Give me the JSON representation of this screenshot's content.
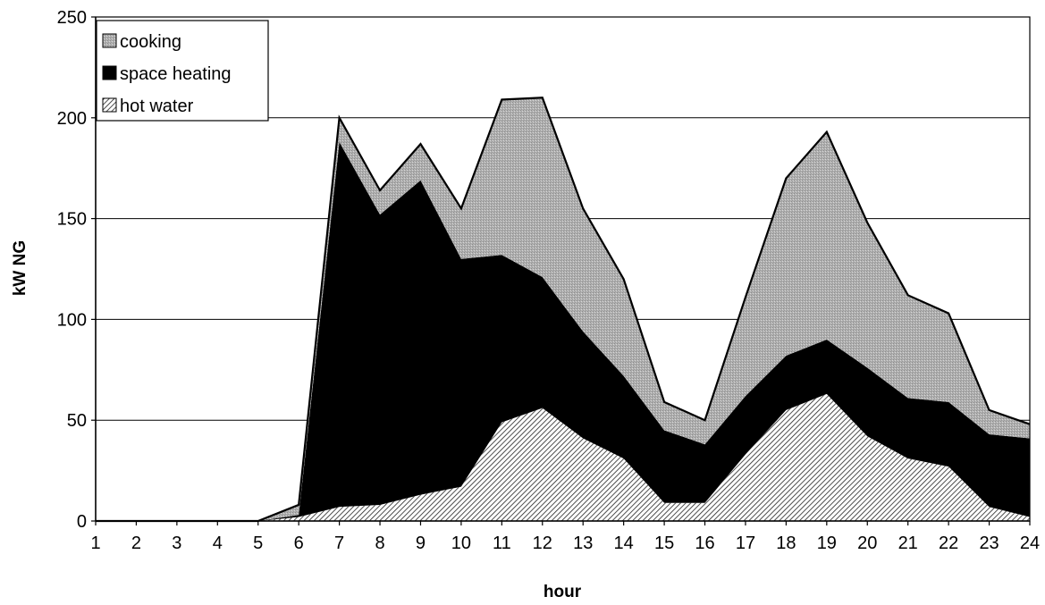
{
  "chart_data": {
    "type": "area",
    "stacked": true,
    "title": "",
    "xlabel": "hour",
    "ylabel": "kW NG",
    "x": [
      1,
      2,
      3,
      4,
      5,
      6,
      7,
      8,
      9,
      10,
      11,
      12,
      13,
      14,
      15,
      16,
      17,
      18,
      19,
      20,
      21,
      22,
      23,
      24
    ],
    "ylim": [
      0,
      250
    ],
    "yticks": [
      0,
      50,
      100,
      150,
      200,
      250
    ],
    "grid": true,
    "legend_position": "top-left",
    "series": [
      {
        "name": "hot water",
        "color": "#cfcfcf",
        "values": [
          0,
          0,
          0,
          0,
          0,
          2,
          7,
          8,
          13,
          17,
          49,
          56,
          41,
          31,
          9,
          9,
          33,
          55,
          63,
          42,
          31,
          27,
          7,
          2
        ]
      },
      {
        "name": "space heating",
        "color": "#000000",
        "values": [
          0,
          0,
          0,
          0,
          0,
          1,
          181,
          144,
          156,
          113,
          83,
          65,
          53,
          41,
          36,
          29,
          29,
          27,
          27,
          34,
          30,
          32,
          36,
          39
        ]
      },
      {
        "name": "cooking",
        "color": "#b4b4b4",
        "values": [
          0,
          0,
          0,
          0,
          0,
          5,
          12,
          12,
          18,
          25,
          77,
          89,
          61,
          48,
          14,
          12,
          49,
          88,
          103,
          72,
          51,
          44,
          12,
          7
        ]
      }
    ],
    "legend": [
      "cooking",
      "space heating",
      "hot water"
    ]
  }
}
